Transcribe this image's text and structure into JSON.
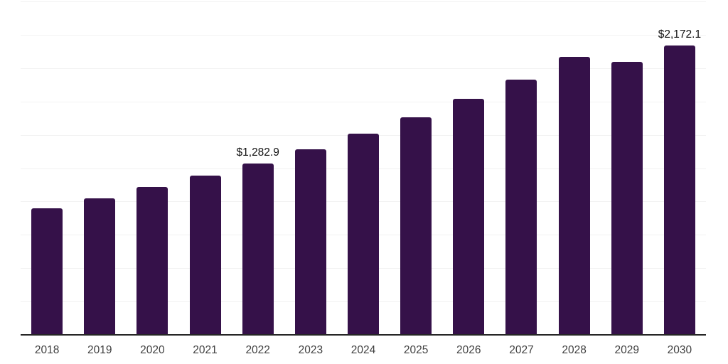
{
  "chart_data": {
    "type": "bar",
    "title": "",
    "xlabel": "",
    "ylabel": "",
    "categories": [
      "2018",
      "2019",
      "2020",
      "2021",
      "2022",
      "2023",
      "2024",
      "2025",
      "2026",
      "2027",
      "2028",
      "2029",
      "2030"
    ],
    "values": [
      950,
      1023,
      1109,
      1194,
      1282.9,
      1391,
      1508,
      1631,
      1770,
      1913,
      2084,
      2047,
      2172.1
    ],
    "data_labels": [
      "",
      "",
      "",
      "",
      "$1,282.9",
      "",
      "",
      "",
      "",
      "",
      "",
      "",
      "$2,172.1"
    ],
    "labeled_points": [
      {
        "category": "2022",
        "label": "$1,282.9"
      },
      {
        "category": "2030",
        "label": "$2,172.1"
      }
    ],
    "ylim": [
      0,
      2500
    ],
    "grid": true,
    "gridline_divisions": 10,
    "legend": "none",
    "y_axis_tick_labels_visible": false,
    "colors": {
      "bar": "#351149",
      "axis_line": "#262626",
      "gridline": "#f2f2f2",
      "data_label": "#111111",
      "tick_label": "#404040",
      "background": "#ffffff"
    }
  }
}
